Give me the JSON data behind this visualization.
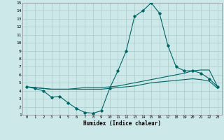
{
  "background_color": "#cce8e8",
  "grid_color": "#aacccc",
  "line_color": "#006666",
  "xlabel": "Humidex (Indice chaleur)",
  "xlim": [
    -0.5,
    23.5
  ],
  "ylim": [
    1,
    15
  ],
  "yticks": [
    1,
    2,
    3,
    4,
    5,
    6,
    7,
    8,
    9,
    10,
    11,
    12,
    13,
    14,
    15
  ],
  "xticks": [
    0,
    1,
    2,
    3,
    4,
    5,
    6,
    7,
    8,
    9,
    10,
    11,
    12,
    13,
    14,
    15,
    16,
    17,
    18,
    19,
    20,
    21,
    22,
    23
  ],
  "series1_x": [
    0,
    1,
    2,
    3,
    4,
    5,
    6,
    7,
    8,
    9,
    10,
    11,
    12,
    13,
    14,
    15,
    16,
    17,
    18,
    19,
    20,
    21,
    22,
    23
  ],
  "series1_y": [
    4.5,
    4.3,
    4.0,
    3.2,
    3.3,
    2.5,
    1.8,
    1.3,
    1.2,
    1.5,
    4.3,
    6.5,
    9.0,
    13.3,
    14.0,
    15.0,
    13.7,
    9.7,
    7.0,
    6.5,
    6.5,
    6.2,
    5.5,
    4.5
  ],
  "series2_x": [
    0,
    1,
    2,
    3,
    4,
    5,
    6,
    7,
    8,
    9,
    10,
    11,
    12,
    13,
    14,
    15,
    16,
    17,
    18,
    19,
    20,
    21,
    22,
    23
  ],
  "series2_y": [
    4.5,
    4.4,
    4.3,
    4.2,
    4.2,
    4.2,
    4.3,
    4.4,
    4.4,
    4.4,
    4.5,
    4.6,
    4.8,
    5.0,
    5.2,
    5.4,
    5.6,
    5.8,
    6.0,
    6.2,
    6.5,
    6.6,
    6.6,
    4.5
  ],
  "series3_x": [
    0,
    1,
    2,
    3,
    4,
    5,
    6,
    7,
    8,
    9,
    10,
    11,
    12,
    13,
    14,
    15,
    16,
    17,
    18,
    19,
    20,
    21,
    22,
    23
  ],
  "series3_y": [
    4.5,
    4.4,
    4.3,
    4.2,
    4.2,
    4.2,
    4.2,
    4.2,
    4.2,
    4.2,
    4.3,
    4.4,
    4.5,
    4.6,
    4.8,
    5.0,
    5.1,
    5.2,
    5.3,
    5.4,
    5.5,
    5.4,
    5.2,
    4.3
  ]
}
